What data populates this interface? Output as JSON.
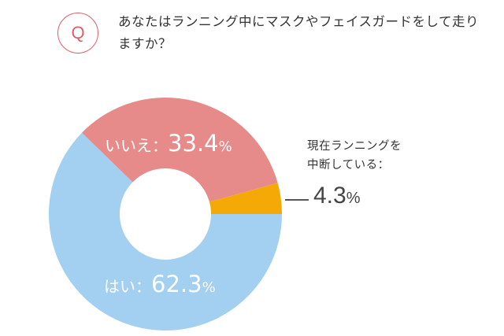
{
  "question_badge": "Q",
  "question_text": "あなたはランニング中にマスクやフェイスガードをして走りますか？",
  "chart_data": {
    "type": "pie",
    "donut": true,
    "series": [
      {
        "name": "はい",
        "label": "はい：",
        "value": 62.3,
        "color": "#a3cff0"
      },
      {
        "name": "いいえ",
        "label": "いいえ：",
        "value": 33.4,
        "color": "#e68a8a"
      },
      {
        "name": "現在ランニングを中断している",
        "label": "現在ランニングを中断している：",
        "value": 4.3,
        "color": "#f5a906"
      }
    ],
    "start_slice": "はい",
    "direction": "clockwise",
    "center_empty": true
  },
  "labels": {
    "yes_text": "はい：",
    "yes_value": "62.3",
    "no_text": "いいえ：",
    "no_value": "33.4",
    "pct": "%",
    "paused_line1": "現在ランニングを",
    "paused_line2": "中断している：",
    "paused_value": "4.3"
  }
}
